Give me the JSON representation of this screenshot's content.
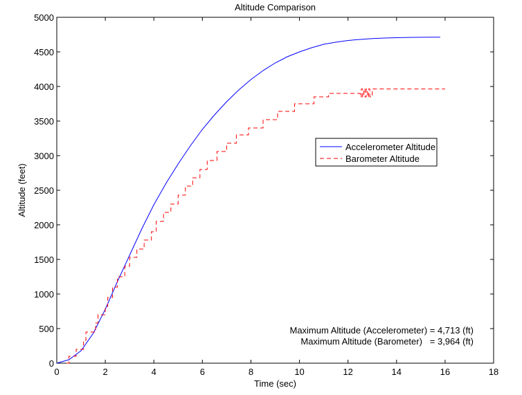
{
  "chart_data": {
    "type": "line",
    "title": "Altitude Comparison",
    "xlabel": "Time (sec)",
    "ylabel": "Altitude (feet)",
    "xlim": [
      0,
      18
    ],
    "ylim": [
      0,
      5000
    ],
    "xticks": [
      0,
      2,
      4,
      6,
      8,
      10,
      12,
      14,
      16,
      18
    ],
    "yticks": [
      0,
      500,
      1000,
      1500,
      2000,
      2500,
      3000,
      3500,
      4000,
      4500,
      5000
    ],
    "grid": false,
    "legend_position": "center-right",
    "series": [
      {
        "name": "Accelerometer Altitude",
        "color": "#0000ff",
        "style": "solid",
        "x": [
          0,
          0.5,
          1,
          1.5,
          2,
          2.5,
          3,
          3.5,
          4,
          4.5,
          5,
          5.5,
          6,
          6.5,
          7,
          7.5,
          8,
          8.5,
          9,
          9.5,
          10,
          10.5,
          11,
          11.5,
          12,
          12.5,
          13,
          13.5,
          14,
          14.5,
          15,
          15.5,
          15.8
        ],
        "y": [
          0,
          50,
          180,
          430,
          780,
          1180,
          1560,
          1940,
          2290,
          2600,
          2880,
          3140,
          3380,
          3590,
          3780,
          3950,
          4100,
          4230,
          4340,
          4430,
          4500,
          4560,
          4610,
          4640,
          4665,
          4680,
          4692,
          4700,
          4705,
          4709,
          4711,
          4712,
          4713
        ]
      },
      {
        "name": "Barometer Altitude",
        "color": "#ff0000",
        "style": "dashed",
        "x": [
          0.4,
          0.5,
          0.8,
          1.1,
          1.2,
          1.6,
          1.7,
          2.0,
          2.1,
          2.3,
          2.5,
          2.8,
          3.0,
          3.3,
          3.6,
          3.9,
          4.1,
          4.4,
          4.7,
          5.0,
          5.3,
          5.6,
          5.9,
          6.2,
          6.6,
          7.0,
          7.4,
          7.9,
          8.5,
          9.1,
          9.8,
          10.6,
          11.2,
          12.0,
          12.5,
          12.55,
          12.6,
          12.65,
          12.7,
          12.75,
          12.8,
          12.85,
          12.9,
          13.0,
          16.0
        ],
        "y": [
          0,
          100,
          200,
          330,
          450,
          580,
          700,
          820,
          950,
          1100,
          1250,
          1400,
          1530,
          1650,
          1780,
          1900,
          2050,
          2180,
          2300,
          2430,
          2560,
          2680,
          2800,
          2930,
          3060,
          3180,
          3300,
          3400,
          3520,
          3640,
          3750,
          3850,
          3900,
          3900,
          3850,
          3964,
          3850,
          3964,
          3850,
          3964,
          3850,
          3964,
          3850,
          3964,
          3964
        ]
      }
    ],
    "annotations": [
      "Maximum Altitude (Accelerometer) = 4,713 (ft)",
      "Maximum Altitude (Barometer)   = 3,964 (ft)"
    ]
  }
}
